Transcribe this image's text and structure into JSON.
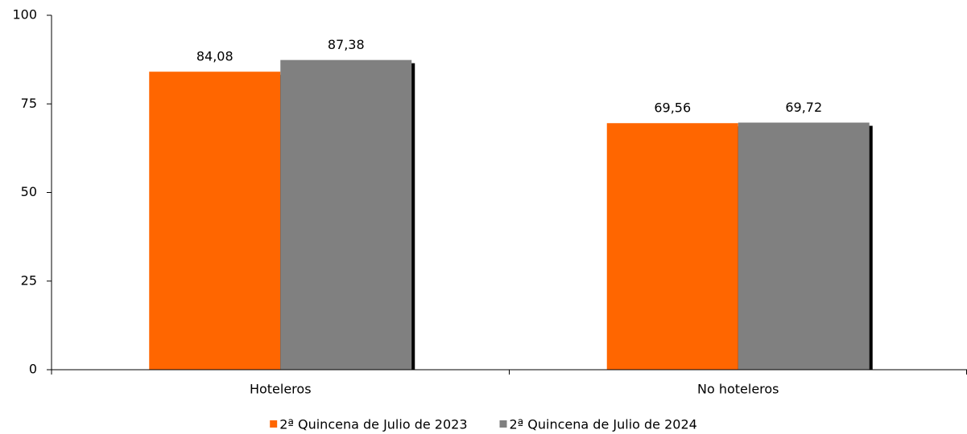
{
  "chart_data": {
    "type": "bar",
    "categories": [
      "Hoteleros",
      "No hoteleros"
    ],
    "series": [
      {
        "name": "2ª Quincena de Julio de 2023",
        "color": "#ff6600",
        "values": [
          84.08,
          69.56
        ],
        "value_labels": [
          "84,08",
          "69,56"
        ]
      },
      {
        "name": "2ª Quincena de Julio de 2024",
        "color": "#808080",
        "values": [
          87.38,
          69.72
        ],
        "value_labels": [
          "87,38",
          "69,72"
        ]
      }
    ],
    "ylim": [
      0,
      100
    ],
    "yticks": [
      0,
      25,
      50,
      75,
      100
    ],
    "grid": false,
    "legend": "bottom"
  }
}
